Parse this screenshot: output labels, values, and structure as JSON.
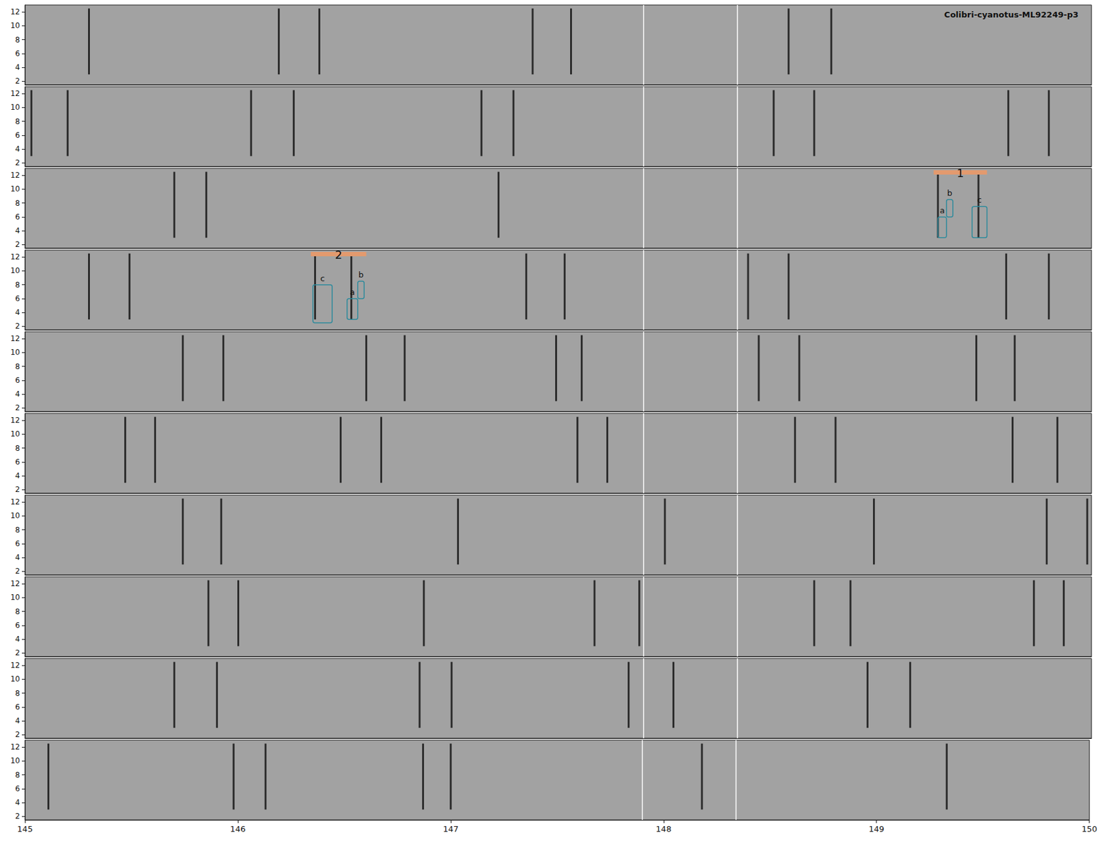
{
  "chart_data": {
    "type": "spectrogram",
    "title": "Colibri-cyanotus-ML92249-p3",
    "xlim": [
      145,
      150
    ],
    "xticks": [
      145,
      146,
      147,
      148,
      149,
      150
    ],
    "ylim": [
      1.5,
      13
    ],
    "yticks": [
      2,
      4,
      6,
      8,
      10,
      12
    ],
    "stroke_band": [
      3,
      12.5
    ],
    "vlines": [
      147.9,
      148.34
    ],
    "panels": [
      {
        "strokes": [
          145.3,
          146.19,
          146.38,
          147.38,
          147.56,
          148.58,
          148.78
        ]
      },
      {
        "strokes": [
          145.03,
          145.2,
          146.06,
          146.26,
          147.14,
          147.29,
          148.51,
          148.7,
          149.61,
          149.8
        ]
      },
      {
        "strokes": [
          145.7,
          145.85,
          147.22,
          149.28,
          149.47
        ]
      },
      {
        "strokes": [
          145.3,
          145.49,
          146.36,
          146.53,
          147.35,
          147.53,
          148.39,
          148.58,
          149.6,
          149.8
        ]
      },
      {
        "strokes": [
          145.74,
          145.93,
          146.6,
          146.78,
          147.49,
          147.61,
          148.44,
          148.63,
          149.46,
          149.64
        ]
      },
      {
        "strokes": [
          145.47,
          145.61,
          146.48,
          146.67,
          147.59,
          147.73,
          148.61,
          148.8,
          149.63,
          149.84
        ]
      },
      {
        "strokes": [
          145.74,
          145.92,
          147.03,
          148.0,
          148.98,
          149.79,
          149.98
        ]
      },
      {
        "strokes": [
          145.86,
          146.0,
          146.87,
          147.67,
          147.88,
          148.7,
          148.87,
          149.73,
          149.87
        ]
      },
      {
        "strokes": [
          145.7,
          145.9,
          146.85,
          147.0,
          147.83,
          148.04,
          148.95,
          149.15
        ]
      },
      {
        "strokes": [
          145.11,
          145.98,
          146.13,
          146.87,
          147.0,
          148.18,
          149.33
        ]
      }
    ],
    "selections": [
      {
        "panel": 3,
        "label": "1",
        "x": [
          149.26,
          149.51
        ]
      },
      {
        "panel": 4,
        "label": "2",
        "x": [
          146.34,
          146.6
        ]
      }
    ],
    "boxes": [
      {
        "panel": 3,
        "label": "a",
        "x": [
          149.28,
          149.32
        ],
        "y": [
          3,
          6
        ]
      },
      {
        "panel": 3,
        "label": "b",
        "x": [
          149.32,
          149.35
        ],
        "y": [
          6,
          8.5
        ]
      },
      {
        "panel": 3,
        "label": "c",
        "x": [
          149.44,
          149.51
        ],
        "y": [
          3,
          7.5
        ]
      },
      {
        "panel": 4,
        "label": "c",
        "x": [
          146.35,
          146.44
        ],
        "y": [
          2.5,
          8
        ]
      },
      {
        "panel": 4,
        "label": "a",
        "x": [
          146.51,
          146.56
        ],
        "y": [
          3,
          6
        ]
      },
      {
        "panel": 4,
        "label": "b",
        "x": [
          146.56,
          146.59
        ],
        "y": [
          6,
          8.5
        ]
      }
    ]
  }
}
